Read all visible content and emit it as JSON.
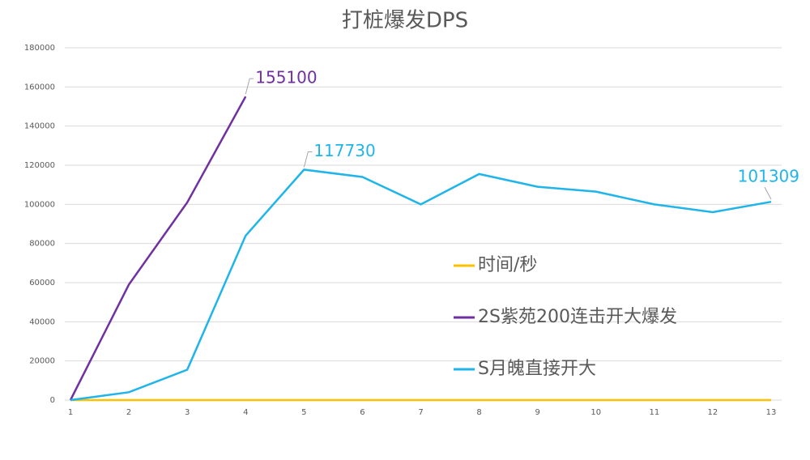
{
  "chart_data": {
    "type": "line",
    "title": "打桩爆发DPS",
    "categories": [
      "1",
      "2",
      "3",
      "4",
      "5",
      "6",
      "7",
      "8",
      "9",
      "10",
      "11",
      "12",
      "13"
    ],
    "series": [
      {
        "name": "时间/秒",
        "color": "#ffc000",
        "values": [
          0,
          0,
          0,
          0,
          0,
          0,
          0,
          0,
          0,
          0,
          0,
          0,
          0
        ],
        "labels_at": []
      },
      {
        "name": "2S紫苑200连击开大爆发",
        "color": "#7030a0",
        "values": [
          0,
          59000,
          101000,
          155100,
          null,
          null,
          null,
          null,
          null,
          null,
          null,
          null,
          null
        ],
        "labels_at": [
          3
        ]
      },
      {
        "name": "S月魄直接开大",
        "color": "#1fb4ea",
        "values": [
          0,
          4000,
          15500,
          84000,
          117730,
          114000,
          100000,
          115500,
          109000,
          106500,
          100000,
          96000,
          101309
        ],
        "labels_at": [
          4,
          12
        ]
      }
    ],
    "ylim": [
      0,
      180000
    ],
    "yticks": [
      0,
      20000,
      40000,
      60000,
      80000,
      100000,
      120000,
      140000,
      160000,
      180000
    ],
    "grid": true,
    "legend": "right"
  }
}
